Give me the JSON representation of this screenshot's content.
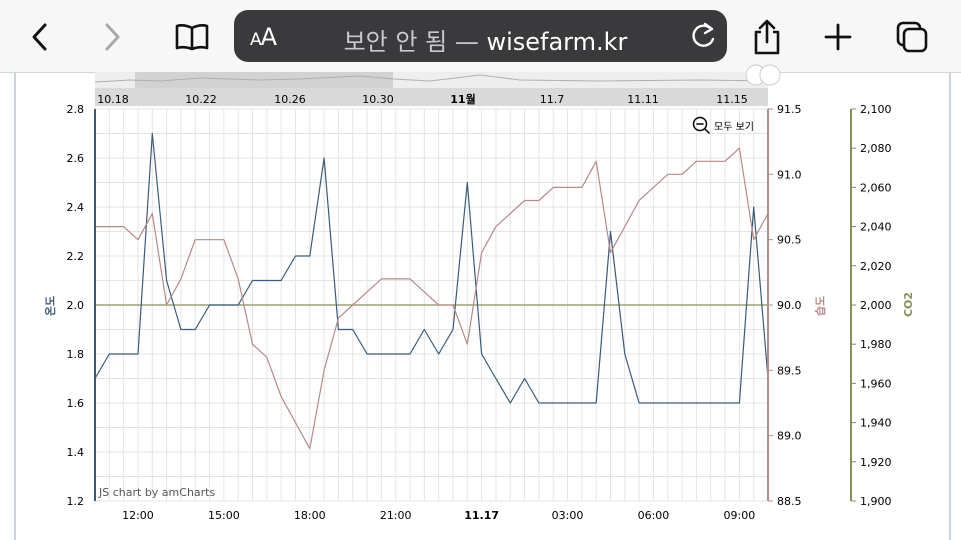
{
  "browser": {
    "url_status": "보안 안 됨",
    "url_separator": "—",
    "url_host": "wisefarm.kr",
    "text_size_label": "AA",
    "icons": [
      "back-chevron-icon",
      "forward-chevron-icon",
      "book-icon",
      "text-size-icon",
      "reload-icon",
      "share-icon",
      "plus-icon",
      "tabs-icon"
    ]
  },
  "scrollbar_dates": [
    "10.18",
    "10.22",
    "10.26",
    "10.30",
    "11월",
    "11.7",
    "11.11",
    "11.15"
  ],
  "zoom_label": "모두 보기",
  "credit": "JS chart by amCharts",
  "colors": {
    "temperature": "#3b5a78",
    "humidity": "#b48a8a",
    "co2": "#8a8f5a"
  },
  "chart_data": {
    "type": "line",
    "x": [
      "10:30",
      "11:00",
      "11:30",
      "12:00",
      "12:30",
      "13:00",
      "13:30",
      "14:00",
      "14:30",
      "15:00",
      "15:30",
      "16:00",
      "16:30",
      "17:00",
      "17:30",
      "18:00",
      "18:30",
      "19:00",
      "19:30",
      "20:00",
      "20:30",
      "21:00",
      "21:30",
      "22:00",
      "22:30",
      "23:00",
      "23:30",
      "00:00",
      "00:30",
      "01:00",
      "01:30",
      "02:00",
      "02:30",
      "03:00",
      "03:30",
      "04:00",
      "04:30",
      "05:00",
      "05:30",
      "06:00",
      "06:30",
      "07:00",
      "07:30",
      "08:00",
      "08:30",
      "09:00",
      "09:30",
      "10:00"
    ],
    "x_ticks": [
      "12:00",
      "15:00",
      "18:00",
      "21:00",
      "11.17",
      "03:00",
      "06:00",
      "09:00"
    ],
    "series": [
      {
        "axis": "left",
        "values": [
          1.7,
          1.8,
          1.8,
          1.8,
          2.7,
          2.1,
          1.9,
          1.9,
          2.0,
          2.0,
          2.0,
          2.1,
          2.1,
          2.1,
          2.2,
          2.2,
          2.6,
          1.9,
          1.9,
          1.8,
          1.8,
          1.8,
          1.8,
          1.9,
          1.8,
          1.9,
          2.5,
          1.8,
          1.7,
          1.6,
          1.7,
          1.6,
          1.6,
          1.6,
          1.6,
          1.6,
          2.3,
          1.8,
          1.6,
          1.6,
          1.6,
          1.6,
          1.6,
          1.6,
          1.6,
          1.6,
          2.4,
          1.7
        ]
      },
      {
        "axis": "right",
        "values": [
          90.6,
          90.6,
          90.6,
          90.5,
          90.7,
          90.0,
          90.2,
          90.5,
          90.5,
          90.5,
          90.2,
          89.7,
          89.6,
          89.3,
          89.1,
          88.9,
          89.5,
          89.9,
          90.0,
          90.1,
          90.2,
          90.2,
          90.2,
          90.1,
          90.0,
          90.0,
          89.7,
          90.4,
          90.6,
          90.7,
          90.8,
          90.8,
          90.9,
          90.9,
          90.9,
          91.1,
          90.4,
          90.6,
          90.8,
          90.9,
          91.0,
          91.0,
          91.1,
          91.1,
          91.1,
          91.2,
          90.5,
          90.7
        ]
      },
      {
        "axis": "co2",
        "values": [
          2000,
          2000,
          2000,
          2000,
          2000,
          2000,
          2000,
          2000,
          2000,
          2000,
          2000,
          2000,
          2000,
          2000,
          2000,
          2000,
          2000,
          2000,
          2000,
          2000,
          2000,
          2000,
          2000,
          2000,
          2000,
          2000,
          2000,
          2000,
          2000,
          2000,
          2000,
          2000,
          2000,
          2000,
          2000,
          2000,
          2000,
          2000,
          2000,
          2000,
          2000,
          2000,
          2000,
          2000,
          2000,
          2000,
          2000,
          2000
        ]
      }
    ],
    "axes": {
      "left": {
        "title": "온도",
        "range": [
          1.2,
          2.8
        ],
        "ticks": [
          "1.2",
          "1.4",
          "1.6",
          "1.8",
          "2.0",
          "2.2",
          "2.4",
          "2.6",
          "2.8"
        ]
      },
      "right": {
        "title": "습도",
        "range": [
          88.5,
          91.5
        ],
        "ticks": [
          "88.5",
          "89.0",
          "89.5",
          "90.0",
          "90.5",
          "91.0",
          "91.5"
        ]
      },
      "co2": {
        "title": "CO2",
        "range": [
          1900,
          2100
        ],
        "ticks": [
          "1,900",
          "1,920",
          "1,940",
          "1,960",
          "1,980",
          "2,000",
          "2,020",
          "2,040",
          "2,060",
          "2,080",
          "2,100"
        ]
      }
    },
    "grid": true
  }
}
